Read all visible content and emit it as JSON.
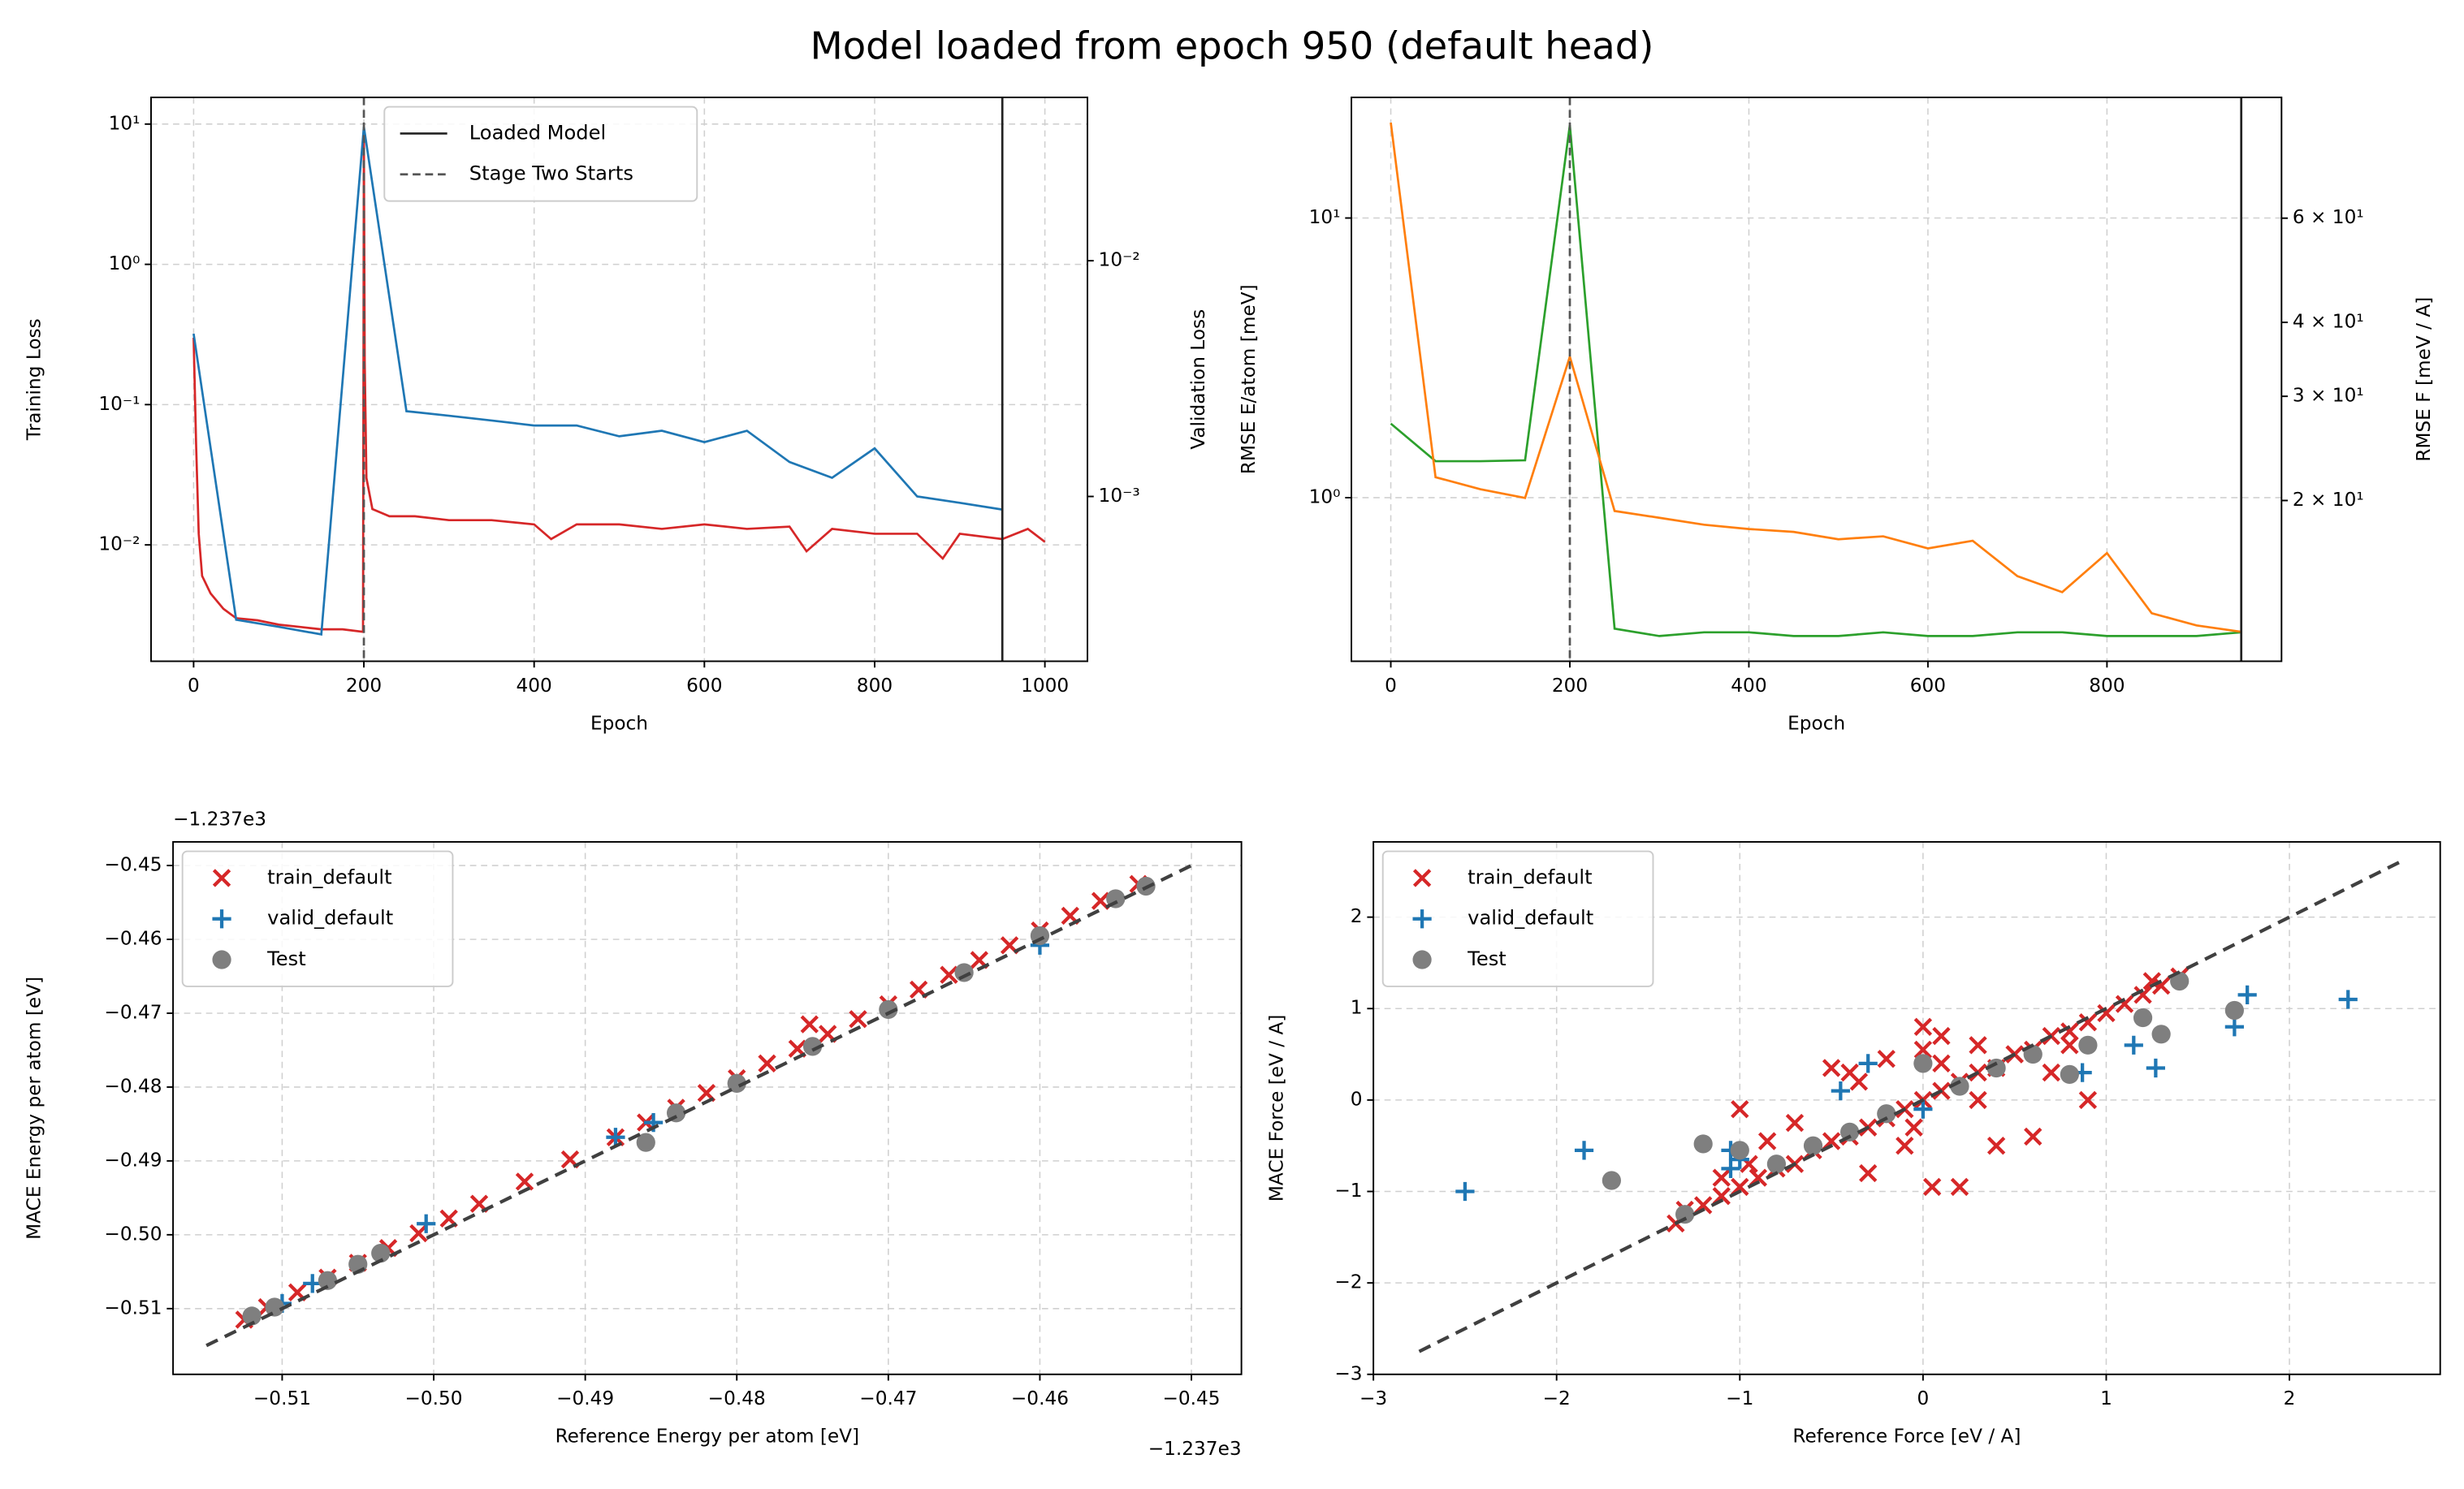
{
  "title": "Model loaded from epoch 950 (default head)",
  "chart_data": [
    {
      "type": "line",
      "xlabel": "Epoch",
      "ylabel": "Training Loss",
      "y2label": "Validation Loss",
      "log_y": true,
      "grid": true,
      "legend": "upper center",
      "xlim": [
        -50,
        1050
      ],
      "xticks": [
        0,
        200,
        400,
        600,
        800,
        1000
      ],
      "ylim": [
        0.00148,
        15.5
      ],
      "yticks": [
        {
          "value": 0.01,
          "label": "10⁻²"
        },
        {
          "value": 0.1,
          "label": "10⁻¹"
        },
        {
          "value": 1,
          "label": "10⁰"
        },
        {
          "value": 10,
          "label": "10¹"
        }
      ],
      "y2lim": [
        0.0002,
        0.0493
      ],
      "y2ticks": [
        {
          "value": 0.001,
          "label": "10⁻³"
        },
        {
          "value": 0.01,
          "label": "10⁻²"
        }
      ],
      "vlines": [
        {
          "name": "Loaded Model",
          "x": 950,
          "style": "solid",
          "color": "#222222"
        },
        {
          "name": "Stage Two Starts",
          "x": 200,
          "style": "dashed",
          "color": "#555555"
        }
      ],
      "series": [
        {
          "color": "#d62728",
          "axis": "y",
          "x": [
            0,
            3,
            6,
            10,
            20,
            35,
            50,
            75,
            100,
            125,
            150,
            175,
            199,
            200,
            201,
            203,
            210,
            230,
            260,
            300,
            350,
            400,
            420,
            450,
            500,
            550,
            600,
            650,
            700,
            720,
            750,
            800,
            850,
            880,
            900,
            950,
            980,
            1000
          ],
          "values": [
            0.3,
            0.05,
            0.012,
            0.006,
            0.0045,
            0.0035,
            0.003,
            0.0029,
            0.0027,
            0.0026,
            0.0025,
            0.0025,
            0.0024,
            8,
            0.2,
            0.03,
            0.018,
            0.016,
            0.016,
            0.015,
            0.015,
            0.014,
            0.011,
            0.014,
            0.014,
            0.013,
            0.014,
            0.013,
            0.0135,
            0.009,
            0.013,
            0.012,
            0.012,
            0.008,
            0.012,
            0.011,
            0.013,
            0.0105
          ]
        },
        {
          "color": "#1f77b4",
          "axis": "y2",
          "x": [
            0,
            50,
            100,
            150,
            200,
            250,
            300,
            350,
            400,
            450,
            500,
            550,
            600,
            650,
            700,
            750,
            800,
            850,
            900,
            950
          ],
          "values": [
            0.0049,
            0.0003,
            0.00028,
            0.00026,
            0.037,
            0.0023,
            0.0022,
            0.0021,
            0.002,
            0.002,
            0.0018,
            0.0019,
            0.0017,
            0.0019,
            0.0014,
            0.0012,
            0.0016,
            0.001,
            0.00094,
            0.00088
          ]
        }
      ]
    },
    {
      "type": "line",
      "xlabel": "Epoch",
      "ylabel": "RMSE E/atom [meV]",
      "y2label": "RMSE F [meV / A]",
      "log_y": true,
      "grid": true,
      "colored_axes": true,
      "xlim": [
        -44,
        995
      ],
      "xticks": [
        0,
        200,
        400,
        600,
        800
      ],
      "ylim": [
        0.26,
        27
      ],
      "yticks": [
        {
          "value": 1,
          "label": "10⁰"
        },
        {
          "value": 10,
          "label": "10¹"
        }
      ],
      "y2lim": [
        10.7,
        96
      ],
      "y2ticks": [
        {
          "value": 20,
          "label": "2 × 10¹"
        },
        {
          "value": 30,
          "label": "3 × 10¹"
        },
        {
          "value": 40,
          "label": "4 × 10¹"
        },
        {
          "value": 60,
          "label": "6 × 10¹"
        }
      ],
      "vlines": [
        {
          "x": 950,
          "style": "solid",
          "color": "#222222"
        },
        {
          "x": 200,
          "style": "dashed",
          "color": "#555555"
        }
      ],
      "series": [
        {
          "color": "#2ca02c",
          "axis": "y",
          "x": [
            0,
            50,
            100,
            150,
            200,
            250,
            300,
            350,
            400,
            450,
            500,
            550,
            600,
            650,
            700,
            750,
            800,
            850,
            900,
            950
          ],
          "values": [
            1.84,
            1.35,
            1.35,
            1.36,
            21.5,
            0.34,
            0.32,
            0.33,
            0.33,
            0.32,
            0.32,
            0.33,
            0.32,
            0.32,
            0.33,
            0.33,
            0.32,
            0.32,
            0.32,
            0.33
          ]
        },
        {
          "color": "#ff7f0e",
          "axis": "y2",
          "x": [
            0,
            50,
            100,
            150,
            200,
            250,
            300,
            350,
            400,
            450,
            500,
            550,
            600,
            650,
            700,
            750,
            800,
            850,
            900,
            950
          ],
          "values": [
            87,
            21.9,
            20.9,
            20.2,
            35,
            19.2,
            18.7,
            18.2,
            17.9,
            17.7,
            17.2,
            17.4,
            16.6,
            17.1,
            14.9,
            14.0,
            16.3,
            12.9,
            12.3,
            12.0
          ]
        }
      ]
    },
    {
      "type": "scatter",
      "xlabel": "Reference Energy per atom [eV]",
      "ylabel": "MACE Energy per atom [eV]",
      "x_offset_label": "−1.237e3",
      "y_offset_label": "−1.237e3",
      "grid": true,
      "legend": "upper left",
      "xlim": [
        -0.5172,
        -0.4467
      ],
      "xticks": [
        {
          "value": -0.51,
          "label": "−0.51"
        },
        {
          "value": -0.5,
          "label": "−0.50"
        },
        {
          "value": -0.49,
          "label": "−0.49"
        },
        {
          "value": -0.48,
          "label": "−0.48"
        },
        {
          "value": -0.47,
          "label": "−0.47"
        },
        {
          "value": -0.46,
          "label": "−0.46"
        },
        {
          "value": -0.45,
          "label": "−0.45"
        }
      ],
      "ylim": [
        -0.5189,
        -0.4468
      ],
      "yticks": [
        {
          "value": -0.51,
          "label": "−0.51"
        },
        {
          "value": -0.5,
          "label": "−0.50"
        },
        {
          "value": -0.49,
          "label": "−0.49"
        },
        {
          "value": -0.48,
          "label": "−0.48"
        },
        {
          "value": -0.47,
          "label": "−0.47"
        },
        {
          "value": -0.46,
          "label": "−0.46"
        },
        {
          "value": -0.45,
          "label": "−0.45"
        }
      ],
      "reference_line": {
        "x": [
          -0.515,
          -0.45
        ],
        "y": [
          -0.515,
          -0.45
        ],
        "color": "#404040"
      },
      "series": [
        {
          "name": "train_default",
          "color": "#d62728",
          "marker": "x",
          "x": [
            -0.5125,
            -0.511,
            -0.509,
            -0.507,
            -0.505,
            -0.503,
            -0.501,
            -0.499,
            -0.497,
            -0.494,
            -0.491,
            -0.488,
            -0.486,
            -0.484,
            -0.482,
            -0.48,
            -0.478,
            -0.476,
            -0.4752,
            -0.474,
            -0.472,
            -0.47,
            -0.468,
            -0.466,
            -0.464,
            -0.462,
            -0.46,
            -0.458,
            -0.456,
            -0.4535
          ],
          "values": [
            -0.5115,
            -0.5098,
            -0.5078,
            -0.5058,
            -0.5038,
            -0.5018,
            -0.4998,
            -0.4978,
            -0.4958,
            -0.4928,
            -0.4898,
            -0.4868,
            -0.4848,
            -0.4828,
            -0.4808,
            -0.4788,
            -0.4768,
            -0.4748,
            -0.4715,
            -0.4728,
            -0.4708,
            -0.4688,
            -0.4668,
            -0.4648,
            -0.4628,
            -0.4608,
            -0.4588,
            -0.4568,
            -0.4548,
            -0.4525
          ]
        },
        {
          "name": "valid_default",
          "color": "#1f77b4",
          "marker": "+",
          "x": [
            -0.51,
            -0.508,
            -0.5005,
            -0.488,
            -0.4855,
            -0.46
          ],
          "values": [
            -0.5093,
            -0.5066,
            -0.4985,
            -0.4868,
            -0.4848,
            -0.4608
          ]
        },
        {
          "name": "Test",
          "color": "#7f7f7f",
          "marker": "o",
          "x": [
            -0.512,
            -0.5105,
            -0.507,
            -0.505,
            -0.5035,
            -0.486,
            -0.484,
            -0.48,
            -0.475,
            -0.47,
            -0.465,
            -0.46,
            -0.455,
            -0.453
          ],
          "values": [
            -0.511,
            -0.5098,
            -0.5062,
            -0.504,
            -0.5025,
            -0.4875,
            -0.4835,
            -0.4795,
            -0.4745,
            -0.4695,
            -0.4645,
            -0.4595,
            -0.4545,
            -0.4528
          ]
        }
      ]
    },
    {
      "type": "scatter",
      "xlabel": "Reference Force [eV / A]",
      "ylabel": "MACE Force [eV / A]",
      "grid": true,
      "legend": "upper left",
      "xlim": [
        -3,
        2.823
      ],
      "xticks": [
        {
          "value": -3,
          "label": "−3"
        },
        {
          "value": -2,
          "label": "−2"
        },
        {
          "value": -1,
          "label": "−1"
        },
        0,
        1,
        2
      ],
      "ylim": [
        -3,
        2.823
      ],
      "yticks": [
        {
          "value": -3,
          "label": "−3"
        },
        {
          "value": -2,
          "label": "−2"
        },
        {
          "value": -1,
          "label": "−1"
        },
        0,
        1,
        2
      ],
      "reference_line": {
        "x": [
          -2.75,
          2.6
        ],
        "y": [
          -2.75,
          2.6
        ],
        "color": "#404040"
      },
      "series": [
        {
          "name": "train_default",
          "color": "#d62728",
          "marker": "x",
          "x": [
            -1.35,
            -1.3,
            -1.2,
            -1.1,
            -1.0,
            -0.9,
            -0.8,
            -0.7,
            -0.6,
            -0.5,
            -0.4,
            -0.3,
            -0.2,
            -0.1,
            0,
            0.1,
            0.2,
            0.3,
            0.4,
            0.5,
            0.6,
            0.7,
            0.8,
            0.9,
            1.0,
            1.1,
            1.2,
            1.3,
            1.4,
            -1.0,
            -0.85,
            -0.7,
            -0.5,
            -0.4,
            -0.2,
            0,
            0.1,
            0.3,
            0.5,
            0.7,
            0.8,
            -0.3,
            -0.1,
            0.05,
            0.2,
            0.4,
            0.6,
            0.9,
            -1.1,
            -0.95,
            0.0,
            -0.05,
            0.1,
            1.25,
            1.4,
            -0.35,
            0.3
          ],
          "values": [
            -1.35,
            -1.2,
            -1.15,
            -1.05,
            -0.95,
            -0.85,
            -0.75,
            -0.7,
            -0.55,
            -0.45,
            -0.4,
            -0.3,
            -0.2,
            -0.1,
            0,
            0.1,
            0.2,
            0.3,
            0.35,
            0.5,
            0.55,
            0.7,
            0.75,
            0.85,
            0.95,
            1.05,
            1.15,
            1.25,
            1.35,
            -0.1,
            -0.45,
            -0.25,
            0.35,
            0.3,
            0.45,
            0.8,
            0.7,
            0.6,
            0.5,
            0.3,
            0.6,
            -0.8,
            -0.5,
            -0.95,
            -0.95,
            -0.5,
            -0.4,
            0,
            -0.85,
            -0.7,
            0.55,
            -0.3,
            0.4,
            1.3,
            1.35,
            0.2,
            0.0
          ]
        },
        {
          "name": "valid_default",
          "color": "#1f77b4",
          "marker": "+",
          "x": [
            -2.5,
            -1.85,
            -1.05,
            -1.05,
            -1.0,
            -0.3,
            -0.45,
            0,
            0.87,
            1.15,
            1.27,
            1.7,
            1.77,
            2.32
          ],
          "values": [
            -1.0,
            -0.55,
            -0.55,
            -0.75,
            -0.65,
            0.4,
            0.1,
            -0.1,
            0.3,
            0.6,
            0.35,
            0.8,
            1.15,
            1.1
          ]
        },
        {
          "name": "Test",
          "color": "#7f7f7f",
          "marker": "o",
          "x": [
            -1.7,
            -1.2,
            -1.0,
            -0.8,
            -0.6,
            -0.4,
            -0.2,
            0,
            0.2,
            0.4,
            0.6,
            0.8,
            0.9,
            1.2,
            1.3,
            1.7,
            -1.3,
            1.4
          ],
          "values": [
            -0.88,
            -0.48,
            -0.55,
            -0.7,
            -0.5,
            -0.35,
            -0.15,
            0.4,
            0.15,
            0.35,
            0.5,
            0.28,
            0.6,
            0.9,
            0.72,
            0.98,
            -1.25,
            1.3
          ]
        }
      ]
    }
  ]
}
